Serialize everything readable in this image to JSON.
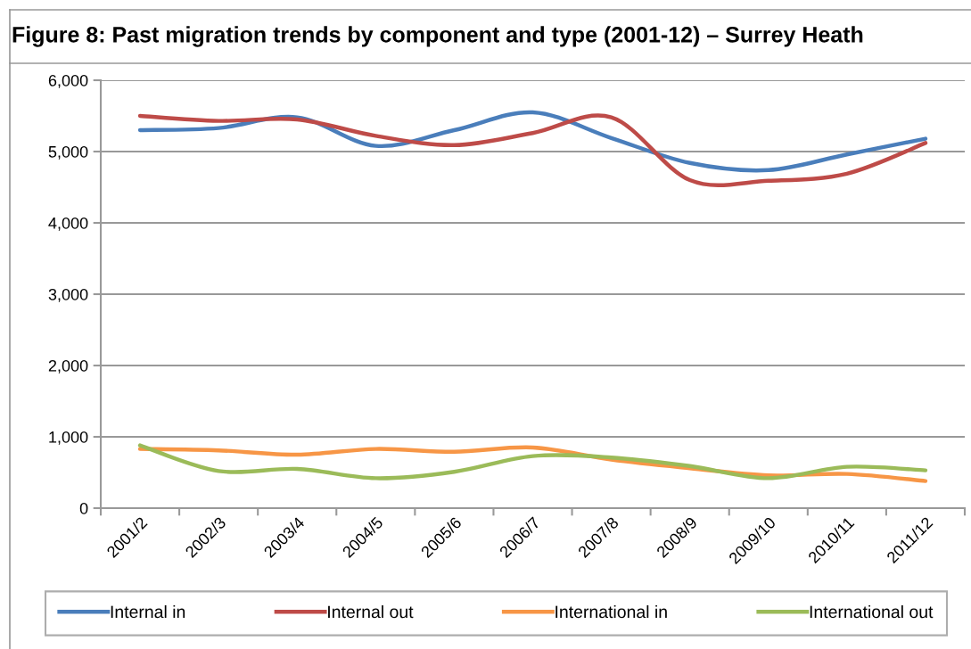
{
  "chart_data": {
    "type": "line",
    "title": "Figure 8: Past migration trends by component and type (2001-12) – Surrey Heath",
    "categories": [
      "2001/2",
      "2002/3",
      "2003/4",
      "2004/5",
      "2005/6",
      "2006/7",
      "2007/8",
      "2008/9",
      "2009/10",
      "2010/11",
      "2011/12"
    ],
    "series": [
      {
        "name": "Internal in",
        "color": "#4a7ebb",
        "values": [
          5300,
          5330,
          5480,
          5080,
          5300,
          5550,
          5190,
          4840,
          4740,
          4960,
          5180
        ]
      },
      {
        "name": "Internal out",
        "color": "#be4b48",
        "values": [
          5500,
          5430,
          5450,
          5220,
          5090,
          5260,
          5480,
          4600,
          4590,
          4690,
          5120
        ]
      },
      {
        "name": "International in",
        "color": "#f79646",
        "values": [
          830,
          810,
          750,
          830,
          790,
          850,
          680,
          560,
          460,
          480,
          380
        ]
      },
      {
        "name": "International out",
        "color": "#9bbb59",
        "values": [
          880,
          520,
          550,
          420,
          510,
          730,
          710,
          590,
          420,
          580,
          530
        ]
      }
    ],
    "ylim": [
      0,
      6000
    ],
    "yticks": [
      0,
      {
        "value": 1000,
        "label": "1,000"
      },
      {
        "value": 2000,
        "label": "2,000"
      },
      {
        "value": 3000,
        "label": "3,000"
      },
      {
        "value": 4000,
        "label": "4,000"
      },
      {
        "value": 5000,
        "label": "5,000"
      },
      {
        "value": 6000,
        "label": "6,000"
      }
    ],
    "grid": "y",
    "legend": "bottom",
    "line_style": "solid"
  }
}
